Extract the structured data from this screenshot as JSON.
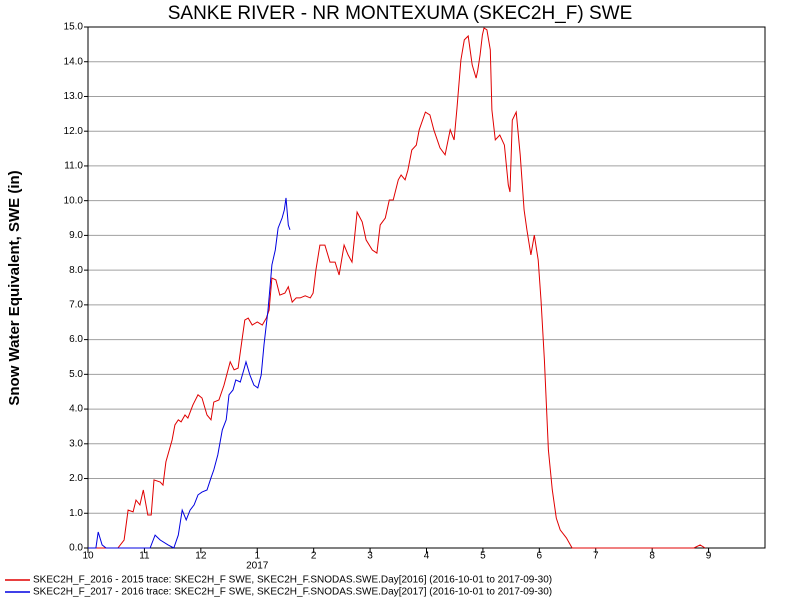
{
  "chart_data": {
    "type": "line",
    "title": "SANKE RIVER - NR MONTEXUMA (SKEC2H_F) SWE",
    "y_label": "Snow Water Equivalent, SWE (in)",
    "year_label": {
      "value": 13,
      "label": "2017"
    },
    "xlim": [
      10,
      22
    ],
    "xticks": [
      {
        "value": 10,
        "label": "10"
      },
      {
        "value": 11,
        "label": "11"
      },
      {
        "value": 12,
        "label": "12"
      },
      {
        "value": 13,
        "label": "1"
      },
      {
        "value": 14,
        "label": "2"
      },
      {
        "value": 15,
        "label": "3"
      },
      {
        "value": 16,
        "label": "4"
      },
      {
        "value": 17,
        "label": "5"
      },
      {
        "value": 18,
        "label": "6"
      },
      {
        "value": 19,
        "label": "7"
      },
      {
        "value": 20,
        "label": "8"
      },
      {
        "value": 21,
        "label": "9"
      }
    ],
    "ylim": [
      0,
      15
    ],
    "yticks": [
      {
        "value": 0,
        "label": "0.0"
      },
      {
        "value": 1,
        "label": "1.0"
      },
      {
        "value": 2,
        "label": "2.0"
      },
      {
        "value": 3,
        "label": "3.0"
      },
      {
        "value": 4,
        "label": "4.0"
      },
      {
        "value": 5,
        "label": "5.0"
      },
      {
        "value": 6,
        "label": "6.0"
      },
      {
        "value": 7,
        "label": "7.0"
      },
      {
        "value": 8,
        "label": "8.0"
      },
      {
        "value": 9,
        "label": "9.0"
      },
      {
        "value": 10,
        "label": "10.0"
      },
      {
        "value": 11,
        "label": "11.0"
      },
      {
        "value": 12,
        "label": "12.0"
      },
      {
        "value": 13,
        "label": "13.0"
      },
      {
        "value": 14,
        "label": "14.0"
      },
      {
        "value": 15,
        "label": "15.0"
      }
    ],
    "grid": true,
    "legend": "bottom",
    "series": [
      {
        "name": "SKEC2H_F_2016 - 2015 trace: SKEC2H_F SWE, SKEC2H_F.SNODAS.SWE.Day[2016] (2016-10-01 to 2017-09-30)",
        "color": "#e00000",
        "x": [
          10.0,
          10.53,
          10.64,
          10.71,
          10.8,
          10.85,
          10.92,
          10.98,
          11.06,
          11.12,
          11.17,
          11.28,
          11.33,
          11.38,
          11.49,
          11.54,
          11.6,
          11.65,
          11.72,
          11.77,
          11.86,
          11.95,
          12.02,
          12.11,
          12.18,
          12.23,
          12.32,
          12.41,
          12.52,
          12.59,
          12.66,
          12.73,
          12.78,
          12.84,
          12.91,
          13.0,
          13.09,
          13.16,
          13.21,
          13.26,
          13.33,
          13.4,
          13.49,
          13.55,
          13.62,
          13.69,
          13.76,
          13.85,
          13.94,
          13.99,
          14.04,
          14.11,
          14.2,
          14.29,
          14.38,
          14.45,
          14.54,
          14.61,
          14.68,
          14.72,
          14.77,
          14.86,
          14.93,
          15.04,
          15.12,
          15.18,
          15.27,
          15.34,
          15.41,
          15.5,
          15.55,
          15.62,
          15.67,
          15.74,
          15.82,
          15.87,
          15.98,
          16.06,
          16.13,
          16.24,
          16.33,
          16.42,
          16.49,
          16.54,
          16.61,
          16.67,
          16.74,
          16.81,
          16.88,
          16.91,
          16.95,
          16.99,
          17.02,
          17.07,
          17.13,
          17.16,
          17.22,
          17.3,
          17.38,
          17.45,
          17.48,
          17.52,
          17.59,
          17.66,
          17.73,
          17.78,
          17.85,
          17.91,
          17.98,
          18.03,
          18.09,
          18.16,
          18.23,
          18.3,
          18.37,
          18.48,
          18.58,
          20.74,
          20.85,
          20.94
        ],
        "values": [
          0,
          0,
          0.23,
          1.09,
          1.04,
          1.38,
          1.24,
          1.67,
          0.95,
          0.95,
          1.96,
          1.9,
          1.81,
          2.48,
          3.11,
          3.54,
          3.69,
          3.63,
          3.83,
          3.74,
          4.12,
          4.41,
          4.32,
          3.83,
          3.69,
          4.2,
          4.26,
          4.69,
          5.36,
          5.13,
          5.18,
          5.99,
          6.56,
          6.62,
          6.42,
          6.51,
          6.42,
          6.62,
          6.85,
          7.77,
          7.72,
          7.28,
          7.34,
          7.52,
          7.08,
          7.2,
          7.2,
          7.26,
          7.2,
          7.34,
          8.0,
          8.72,
          8.72,
          8.23,
          8.23,
          7.86,
          8.72,
          8.44,
          8.23,
          8.87,
          9.67,
          9.39,
          8.87,
          8.58,
          8.49,
          9.3,
          9.5,
          10.02,
          10.02,
          10.6,
          10.74,
          10.6,
          10.88,
          11.46,
          11.6,
          12.04,
          12.55,
          12.47,
          12.04,
          11.52,
          11.32,
          12.04,
          11.75,
          12.67,
          14.05,
          14.63,
          14.74,
          13.91,
          13.53,
          13.76,
          14.2,
          14.77,
          14.97,
          14.92,
          14.34,
          12.61,
          11.75,
          11.89,
          11.6,
          10.45,
          10.25,
          12.32,
          12.55,
          11.32,
          9.73,
          9.16,
          8.44,
          9.01,
          8.29,
          7.14,
          5.41,
          2.82,
          1.67,
          0.86,
          0.52,
          0.29,
          0,
          0,
          0.09,
          0
        ]
      },
      {
        "name": "SKEC2H_F_2017 - 2016 trace: SKEC2H_F SWE, SKEC2H_F.SNODAS.SWE.Day[2017] (2016-10-01 to 2017-09-30)",
        "color": "#0000e0",
        "x": [
          10.0,
          10.14,
          10.18,
          10.25,
          10.32,
          11.1,
          11.19,
          11.28,
          11.42,
          11.52,
          11.6,
          11.67,
          11.74,
          11.81,
          11.88,
          11.95,
          12.02,
          12.11,
          12.18,
          12.23,
          12.3,
          12.38,
          12.45,
          12.5,
          12.57,
          12.62,
          12.7,
          12.77,
          12.8,
          12.87,
          12.94,
          13.01,
          13.07,
          13.12,
          13.19,
          13.23,
          13.26,
          13.32,
          13.37,
          13.44,
          13.48,
          13.51,
          13.55,
          13.58
        ],
        "values": [
          0,
          0,
          0.46,
          0.09,
          0,
          0,
          0.37,
          0.23,
          0.09,
          0,
          0.37,
          1.09,
          0.81,
          1.09,
          1.24,
          1.53,
          1.61,
          1.67,
          2.02,
          2.25,
          2.68,
          3.4,
          3.69,
          4.41,
          4.55,
          4.84,
          4.78,
          5.18,
          5.36,
          4.98,
          4.69,
          4.61,
          4.98,
          5.85,
          6.85,
          7.57,
          8.15,
          8.58,
          9.21,
          9.5,
          9.73,
          10.08,
          9.3,
          9.16
        ]
      }
    ]
  }
}
